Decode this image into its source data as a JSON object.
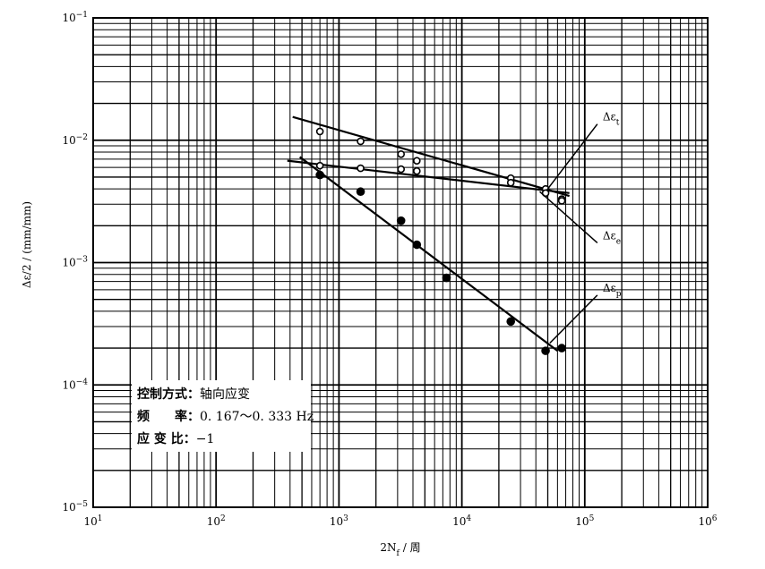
{
  "chart_data": {
    "type": "scatter",
    "scale": {
      "x": "log",
      "y": "log"
    },
    "xlim": [
      10,
      1000000
    ],
    "ylim": [
      1e-05,
      0.1
    ],
    "grid": true,
    "xlabel": {
      "text": "2N",
      "sub": "f",
      "suffix": " / 周"
    },
    "ylabel": "Δε/2 / (mm/mm)",
    "x_ticks": [
      {
        "base": "10",
        "exp": "1",
        "value": 10
      },
      {
        "base": "10",
        "exp": "2",
        "value": 100
      },
      {
        "base": "10",
        "exp": "3",
        "value": 1000
      },
      {
        "base": "10",
        "exp": "4",
        "value": 10000
      },
      {
        "base": "10",
        "exp": "5",
        "value": 100000
      },
      {
        "base": "10",
        "exp": "6",
        "value": 1000000
      }
    ],
    "y_ticks": [
      {
        "base": "10",
        "exp": "−5",
        "value": 1e-05
      },
      {
        "base": "10",
        "exp": "−4",
        "value": 0.0001
      },
      {
        "base": "10",
        "exp": "−3",
        "value": 0.001
      },
      {
        "base": "10",
        "exp": "−2",
        "value": 0.01
      },
      {
        "base": "10",
        "exp": "−1",
        "value": 0.1
      }
    ],
    "series": [
      {
        "name": "Δε_t",
        "label": {
          "base": "Δε",
          "sub": "t"
        },
        "marker": "open-circle",
        "points": [
          [
            700,
            0.0118
          ],
          [
            1500,
            0.0098
          ],
          [
            3200,
            0.0077
          ],
          [
            4300,
            0.0068
          ],
          [
            25000,
            0.0049
          ],
          [
            48000,
            0.004
          ],
          [
            65000,
            0.0033
          ]
        ],
        "fit": [
          [
            420,
            0.0155
          ],
          [
            75000,
            0.0035
          ]
        ]
      },
      {
        "name": "Δε_e",
        "label": {
          "base": "Δε",
          "sub": "e"
        },
        "marker": "open-circle",
        "points": [
          [
            700,
            0.0062
          ],
          [
            1500,
            0.0059
          ],
          [
            3200,
            0.0058
          ],
          [
            4300,
            0.0056
          ],
          [
            25000,
            0.0045
          ],
          [
            48000,
            0.0037
          ],
          [
            65000,
            0.0032
          ]
        ],
        "fit": [
          [
            380,
            0.0068
          ],
          [
            75000,
            0.0037
          ]
        ]
      },
      {
        "name": "Δε_p",
        "label": {
          "base": "Δε",
          "sub": "p"
        },
        "marker": "filled-circle",
        "points": [
          [
            700,
            0.0052
          ],
          [
            1500,
            0.0038
          ],
          [
            3200,
            0.0022
          ],
          [
            4300,
            0.0014
          ],
          [
            7500,
            0.00075
          ],
          [
            25000,
            0.00033
          ],
          [
            48000,
            0.00019
          ],
          [
            65000,
            0.0002
          ]
        ],
        "fit": [
          [
            480,
            0.0073
          ],
          [
            60000,
            0.00019
          ]
        ]
      }
    ],
    "annotations": [
      {
        "series": "Δε_t",
        "from": [
          49000,
          0.0039
        ],
        "label_at": [
          140000,
          0.0145
        ]
      },
      {
        "series": "Δε_e",
        "from": [
          43000,
          0.0038
        ],
        "label_at": [
          140000,
          0.00155
        ]
      },
      {
        "series": "Δε_p",
        "from": [
          52000,
          0.00022
        ],
        "label_at": [
          140000,
          0.00058
        ]
      }
    ],
    "legend_box": {
      "position": "bottom-left",
      "lines": [
        {
          "label": "控制方式：",
          "value": "轴向应变"
        },
        {
          "label": "频　　率：",
          "value": "0. 167～0. 333 Hz"
        },
        {
          "label": "应 变 比：",
          "value": "−1"
        }
      ]
    }
  }
}
